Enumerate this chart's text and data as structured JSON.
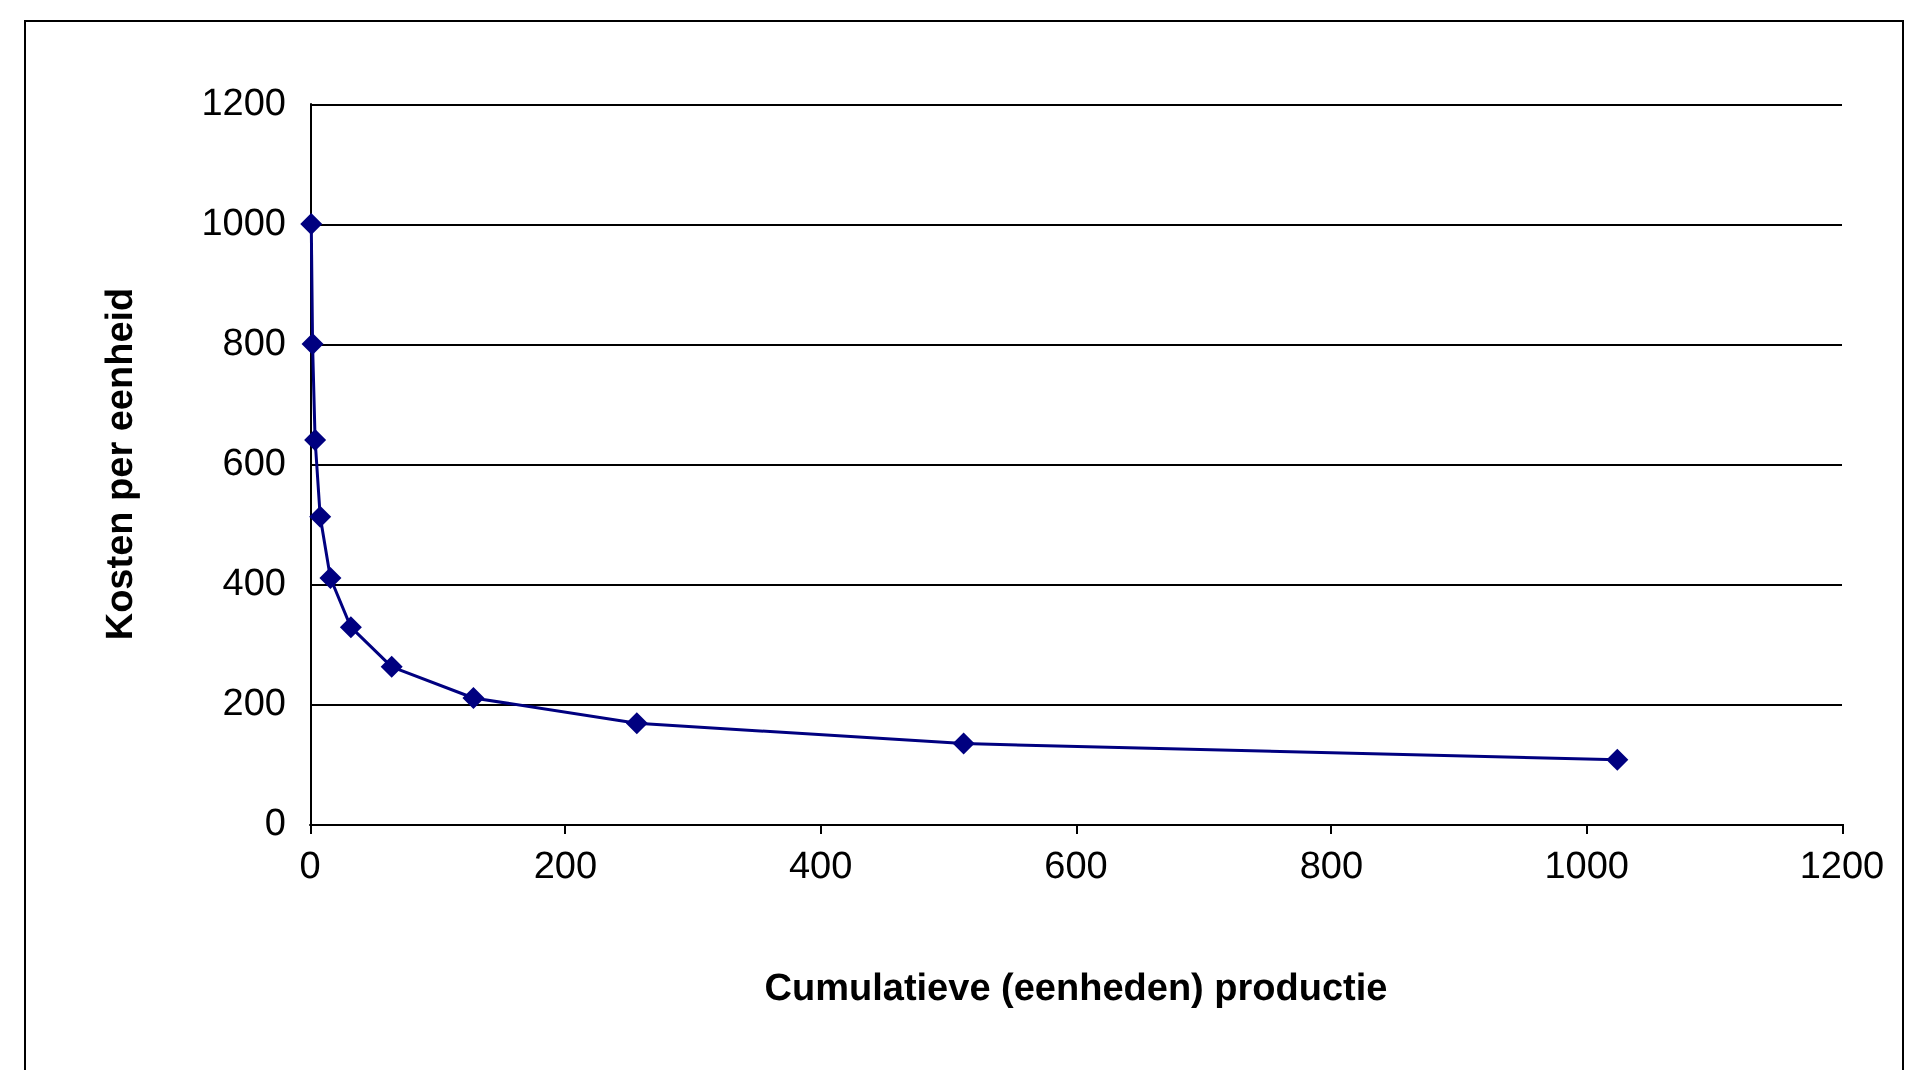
{
  "chart_data": {
    "type": "line",
    "xlabel": "Cumulatieve (eenheden) productie",
    "ylabel": "Kosten per eenheid",
    "x": [
      1,
      2,
      4,
      8,
      16,
      32,
      64,
      128,
      256,
      512,
      1024
    ],
    "series": [
      {
        "color": "#000080",
        "values": [
          1000,
          800,
          640,
          512,
          410,
          328,
          262,
          210,
          168,
          134,
          107
        ]
      }
    ],
    "xlim": [
      0,
      1200
    ],
    "xticks": [
      0,
      200,
      400,
      600,
      800,
      1000,
      1200
    ],
    "ylim": [
      0,
      1200
    ],
    "yticks": [
      0,
      200,
      400,
      600,
      800,
      1000,
      1200
    ],
    "grid": "y",
    "marker": "diamond",
    "line_style": "solid"
  }
}
